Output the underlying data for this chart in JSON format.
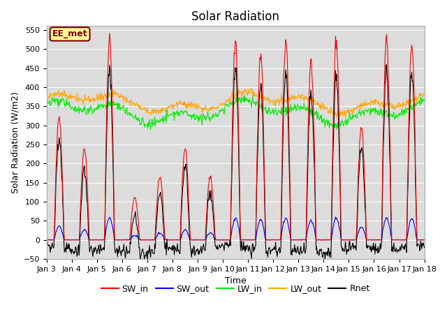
{
  "title": "Solar Radiation",
  "xlabel": "Time",
  "ylabel": "Solar Radiation (W/m2)",
  "ylim": [
    -50,
    560
  ],
  "yticks": [
    -50,
    0,
    50,
    100,
    150,
    200,
    250,
    300,
    350,
    400,
    450,
    500,
    550
  ],
  "xtick_labels": [
    "Jan 3",
    "Jan 4",
    "Jan 5",
    "Jan 6",
    "Jan 7",
    "Jan 8",
    "Jan 9",
    "Jan 10",
    "Jan 11",
    "Jan 12",
    "Jan 13",
    "Jan 14",
    "Jan 15",
    "Jan 16",
    "Jan 17",
    "Jan 18"
  ],
  "n_days": 15,
  "n_points_per_day": 48,
  "legend_label": "EE_met",
  "legend_bg": "#FFFF99",
  "legend_border": "#800000",
  "SW_in_peaks": [
    320,
    240,
    530,
    110,
    165,
    240,
    165,
    520,
    480,
    520,
    465,
    520,
    295,
    530,
    510
  ],
  "series": {
    "SW_in": {
      "color": "#FF0000",
      "lw": 0.8
    },
    "SW_out": {
      "color": "#0000FF",
      "lw": 0.8
    },
    "LW_in": {
      "color": "#00EE00",
      "lw": 0.8
    },
    "LW_out": {
      "color": "#FFA500",
      "lw": 0.8
    },
    "Rnet": {
      "color": "#000000",
      "lw": 0.8
    }
  },
  "background_color": "#DCDCDC",
  "title_fontsize": 12,
  "axis_fontsize": 9,
  "tick_fontsize": 8
}
